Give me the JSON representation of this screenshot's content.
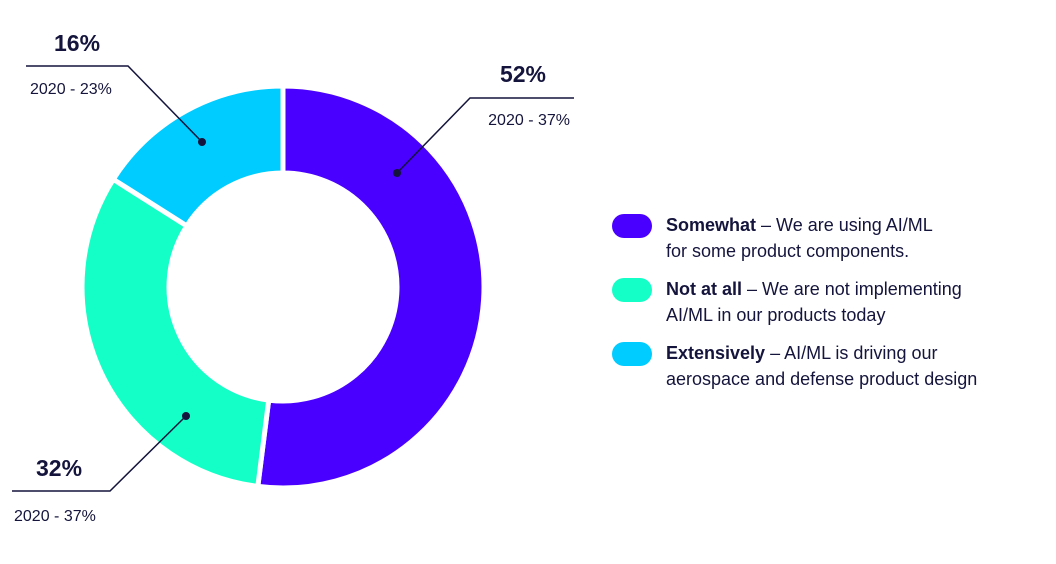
{
  "colors": {
    "somewhat": "#4a00ff",
    "not_at_all": "#14ffc8",
    "extensively": "#00ccff",
    "ink": "#14143c"
  },
  "chart_data": {
    "type": "pie",
    "donut": true,
    "slices": [
      {
        "key": "somewhat",
        "value": 52,
        "label": "52%",
        "prev_label": "2020 - 37%"
      },
      {
        "key": "not_at_all",
        "value": 32,
        "label": "32%",
        "prev_label": "2020 - 37%"
      },
      {
        "key": "extensively",
        "value": 16,
        "label": "16%",
        "prev_label": "2020 - 23%"
      }
    ],
    "legend_placement": "right"
  },
  "legend": [
    {
      "key": "somewhat",
      "bold": "Somewhat",
      "rest_line1": " – We are using AI/ML",
      "rest_line2": "for some product components."
    },
    {
      "key": "not_at_all",
      "bold": "Not at all",
      "rest_line1": " – We are not implementing",
      "rest_line2": "AI/ML in our products today"
    },
    {
      "key": "extensively",
      "bold": "Extensively",
      "rest_line1": " – AI/ML is driving our",
      "rest_line2": "aerospace and defense product design"
    }
  ]
}
